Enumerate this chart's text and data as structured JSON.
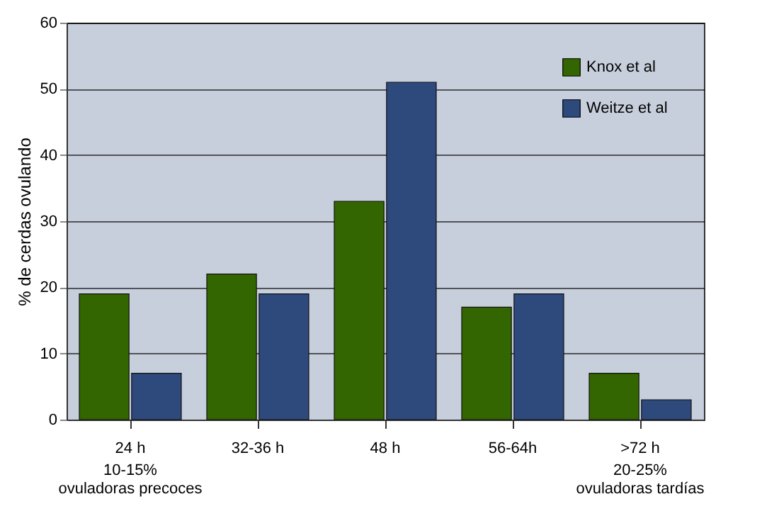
{
  "chart_data": {
    "type": "bar",
    "ylabel": "% de cerdas ovulando",
    "categories": [
      "24 h",
      "32-36 h",
      "48 h",
      "56-64h",
      ">72 h"
    ],
    "series": [
      {
        "name": "Knox et al",
        "color": "#336600",
        "values": [
          19,
          22,
          33,
          17,
          7
        ]
      },
      {
        "name": "Weitze et al",
        "color": "#2e4a7d",
        "values": [
          7,
          19,
          51,
          19,
          3
        ]
      }
    ],
    "ylim": [
      0,
      60
    ],
    "yticks": [
      0,
      10,
      20,
      30,
      40,
      50,
      60
    ],
    "grid": "y",
    "legend": "top right",
    "annotations": [
      "10-15%\novuladoras precoces",
      "20-25%\novuladoras tardías"
    ]
  }
}
